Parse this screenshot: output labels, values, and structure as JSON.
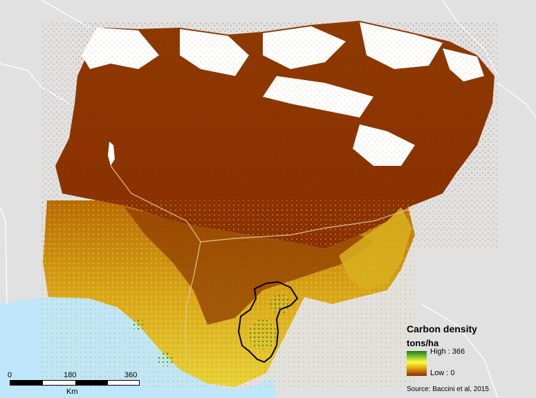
{
  "legend": {
    "title": "Carbon density",
    "units": "tons/ha",
    "high_label": "High : 366",
    "low_label": "Low : 0",
    "ramp_colors": [
      "#1d7a1d",
      "#8fc832",
      "#ffff40",
      "#e0a010",
      "#8b2e00"
    ]
  },
  "scalebar": {
    "ticks": [
      "0",
      "180",
      "360"
    ],
    "unit": "Km"
  },
  "source": "Source: Baccini et al, 2015",
  "colors": {
    "background_land": "#e1e1e1",
    "water": "#bfe6fa",
    "low_carbon": "#8b2e00",
    "mid_carbon": "#ffff40",
    "high_carbon": "#1d7a1d",
    "no_data": "#ffffff",
    "highlight_border": "#000000"
  }
}
